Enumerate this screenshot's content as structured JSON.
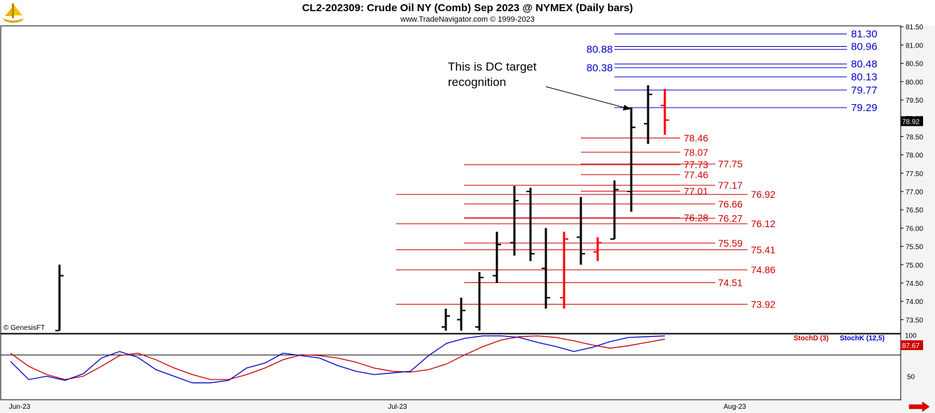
{
  "header": {
    "title": "CL2-202309:  Crude Oil NY (Comb) Sep 2023 @ NYMEX  (Daily bars)",
    "subtitle": "www.TradeNavigator.com © 1999-2023"
  },
  "icons": {
    "logo": "tradenavigator-ship-logo-icon",
    "arrow": "red-right-arrow-icon"
  },
  "colors": {
    "up_bar": "#000000",
    "down_bar": "#ff0000",
    "blue_lines": "#0000cc",
    "red_lines": "#cc0000",
    "stoch_d": "#cc0000",
    "stoch_k": "#0000cc",
    "last_price_bg": "#000000",
    "stoch_value_bg": "#cc0000"
  },
  "chart_data": [
    {
      "type": "ohlc",
      "panel": "price",
      "title": "CL2-202309:  Crude Oil NY (Comb) Sep 2023 @ NYMEX  (Daily bars)",
      "x_ticks": [
        "Jun-23",
        "Jul-23",
        "Aug-23"
      ],
      "y_ticks": [
        "81.50",
        "81.00",
        "80.50",
        "80.00",
        "79.50",
        "79.00",
        "78.50",
        "78.00",
        "77.50",
        "77.00",
        "76.50",
        "76.00",
        "75.50",
        "75.00",
        "74.50",
        "74.00",
        "73.50"
      ],
      "ylim": [
        73.2,
        81.6
      ],
      "last_price": "78.92",
      "copyright": "© GenesisFT",
      "annotation": "This is DC target recognition",
      "bars": [
        {
          "date": "2023-06-05",
          "open": 73.2,
          "high": 75.0,
          "low": 73.2,
          "close": 74.7,
          "dir": "up"
        },
        {
          "date": "2023-07-12",
          "open": 73.3,
          "high": 73.8,
          "low": 73.2,
          "close": 73.6,
          "dir": "up"
        },
        {
          "date": "2023-07-13",
          "open": 73.5,
          "high": 74.1,
          "low": 73.2,
          "close": 73.75,
          "dir": "up"
        },
        {
          "date": "2023-07-14",
          "open": 73.3,
          "high": 74.8,
          "low": 73.2,
          "close": 74.65,
          "dir": "up"
        },
        {
          "date": "2023-07-17",
          "open": 74.7,
          "high": 75.9,
          "low": 74.5,
          "close": 75.55,
          "dir": "up"
        },
        {
          "date": "2023-07-18",
          "open": 75.6,
          "high": 77.15,
          "low": 75.25,
          "close": 76.75,
          "dir": "up"
        },
        {
          "date": "2023-07-19",
          "open": 77.0,
          "high": 77.1,
          "low": 75.1,
          "close": 75.3,
          "dir": "up"
        },
        {
          "date": "2023-07-20",
          "open": 74.9,
          "high": 76.0,
          "low": 73.8,
          "close": 74.1,
          "dir": "up"
        },
        {
          "date": "2023-07-21",
          "open": 74.1,
          "high": 75.9,
          "low": 73.8,
          "close": 75.7,
          "dir": "down"
        },
        {
          "date": "2023-07-24",
          "open": 75.75,
          "high": 76.85,
          "low": 75.0,
          "close": 75.3,
          "dir": "up"
        },
        {
          "date": "2023-07-25",
          "open": 75.35,
          "high": 75.75,
          "low": 75.1,
          "close": 75.6,
          "dir": "down"
        },
        {
          "date": "2023-07-26",
          "open": 75.7,
          "high": 77.3,
          "low": 75.7,
          "close": 77.05,
          "dir": "up"
        },
        {
          "date": "2023-07-27",
          "open": 77.0,
          "high": 79.3,
          "low": 76.45,
          "close": 78.75,
          "dir": "up"
        },
        {
          "date": "2023-07-28",
          "open": 78.85,
          "high": 79.9,
          "low": 78.3,
          "close": 79.65,
          "dir": "up"
        },
        {
          "date": "2023-07-31",
          "open": 79.35,
          "high": 79.8,
          "low": 78.55,
          "close": 78.95,
          "dir": "down"
        }
      ],
      "levels_blue_right": [
        "81.30",
        "80.96",
        "80.48",
        "80.13",
        "79.77",
        "79.29"
      ],
      "levels_blue_left": [
        "80.88",
        "80.38"
      ],
      "levels_red": [
        "78.46",
        "78.07",
        "77.73",
        "77.75",
        "77.46",
        "77.17",
        "77.01",
        "76.92",
        "76.66",
        "76.28",
        "76.27",
        "76.12",
        "75.59",
        "75.41",
        "74.86",
        "74.51",
        "73.92"
      ]
    },
    {
      "type": "line",
      "panel": "stochastic",
      "series": [
        {
          "name": "StochD (3)",
          "color": "#cc0000",
          "values": [
            78,
            62,
            52,
            46,
            50,
            62,
            75,
            78,
            70,
            60,
            52,
            46,
            46,
            52,
            60,
            70,
            76,
            75,
            72,
            67,
            60,
            56,
            55,
            58,
            65,
            76,
            86,
            94,
            98,
            99,
            97,
            93,
            88,
            84,
            87,
            91,
            95
          ]
        },
        {
          "name": "StochK (12,5)",
          "color": "#0000cc",
          "values": [
            68,
            46,
            50,
            45,
            53,
            72,
            80,
            73,
            58,
            50,
            42,
            42,
            45,
            60,
            66,
            78,
            75,
            72,
            63,
            56,
            52,
            54,
            56,
            75,
            90,
            96,
            99,
            99,
            97,
            91,
            86,
            80,
            85,
            92,
            97,
            98,
            99
          ]
        }
      ],
      "y_ticks": [
        "100",
        "50"
      ],
      "last_value": "87.67"
    }
  ]
}
